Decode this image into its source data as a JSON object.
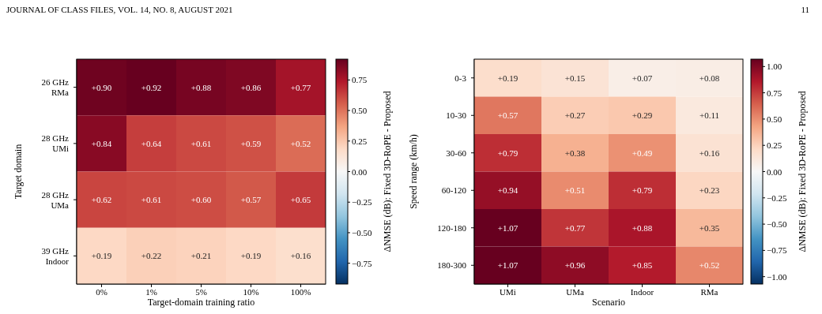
{
  "chart_data": [
    {
      "type": "heatmap",
      "annotations": [
        "JOURNAL OF CLASS FILES, VOL. 14, NO. 8, AUGUST 2021",
        "11"
      ],
      "xlabel": "Target-domain training ratio",
      "ylabel": "Target domain",
      "clabel": "ΔNMSE (dB): Fixed 3D-RoPE - Proposed",
      "categories": [
        "0%",
        "1%",
        "5%",
        "10%",
        "100%"
      ],
      "y_categories": [
        "26 GHz\nRMa",
        "28 GHz\nUMi",
        "28 GHz\nUMa",
        "39 GHz\nIndoor"
      ],
      "cells": [
        [
          0.9,
          0.92,
          0.88,
          0.86,
          0.77
        ],
        [
          0.84,
          0.64,
          0.61,
          0.59,
          0.52
        ],
        [
          0.62,
          0.61,
          0.6,
          0.57,
          0.65
        ],
        [
          0.19,
          0.22,
          0.21,
          0.19,
          0.16
        ]
      ],
      "cell_labels": [
        [
          "+0.90",
          "+0.92",
          "+0.88",
          "+0.86",
          "+0.77"
        ],
        [
          "+0.84",
          "+0.64",
          "+0.61",
          "+0.59",
          "+0.52"
        ],
        [
          "+0.62",
          "+0.61",
          "+0.60",
          "+0.57",
          "+0.65"
        ],
        [
          "+0.19",
          "+0.22",
          "+0.21",
          "+0.19",
          "+0.16"
        ]
      ],
      "clim": [
        -0.92,
        0.92
      ],
      "cticks": [
        {
          "value": 0.75,
          "label": "0.75"
        },
        {
          "value": 0.5,
          "label": "0.50"
        },
        {
          "value": 0.25,
          "label": "0.25"
        },
        {
          "value": 0,
          "label": "0.00"
        },
        {
          "value": -0.25,
          "label": "−0.25"
        },
        {
          "value": -0.5,
          "label": "−0.50"
        },
        {
          "value": -0.75,
          "label": "−0.75"
        }
      ]
    },
    {
      "type": "heatmap",
      "xlabel": "Scenario",
      "ylabel": "Speed range (km/h)",
      "clabel": "ΔNMSE (dB): Fixed 3D-RoPE - Proposed",
      "categories": [
        "UMi",
        "UMa",
        "Indoor",
        "RMa"
      ],
      "y_categories": [
        "0-3",
        "10-30",
        "30-60",
        "60-120",
        "120-180",
        "180-300"
      ],
      "cells": [
        [
          0.19,
          0.15,
          0.07,
          0.08
        ],
        [
          0.57,
          0.27,
          0.29,
          0.11
        ],
        [
          0.79,
          0.38,
          0.49,
          0.16
        ],
        [
          0.94,
          0.51,
          0.79,
          0.23
        ],
        [
          1.07,
          0.77,
          0.88,
          0.35
        ],
        [
          1.07,
          0.96,
          0.85,
          0.52
        ]
      ],
      "cell_labels": [
        [
          "+0.19",
          "+0.15",
          "+0.07",
          "+0.08"
        ],
        [
          "+0.57",
          "+0.27",
          "+0.29",
          "+0.11"
        ],
        [
          "+0.79",
          "+0.38",
          "+0.49",
          "+0.16"
        ],
        [
          "+0.94",
          "+0.51",
          "+0.79",
          "+0.23"
        ],
        [
          "+1.07",
          "+0.77",
          "+0.88",
          "+0.35"
        ],
        [
          "+1.07",
          "+0.96",
          "+0.85",
          "+0.52"
        ]
      ],
      "clim": [
        -1.07,
        1.07
      ],
      "cticks": [
        {
          "value": 1,
          "label": "1.00"
        },
        {
          "value": 0.75,
          "label": "0.75"
        },
        {
          "value": 0.5,
          "label": "0.50"
        },
        {
          "value": 0.25,
          "label": "0.25"
        },
        {
          "value": 0,
          "label": "0.00"
        },
        {
          "value": -0.25,
          "label": "−0.25"
        },
        {
          "value": -0.5,
          "label": "−0.50"
        },
        {
          "value": -0.75,
          "label": "−0.75"
        },
        {
          "value": -1,
          "label": "−1.00"
        }
      ]
    }
  ]
}
